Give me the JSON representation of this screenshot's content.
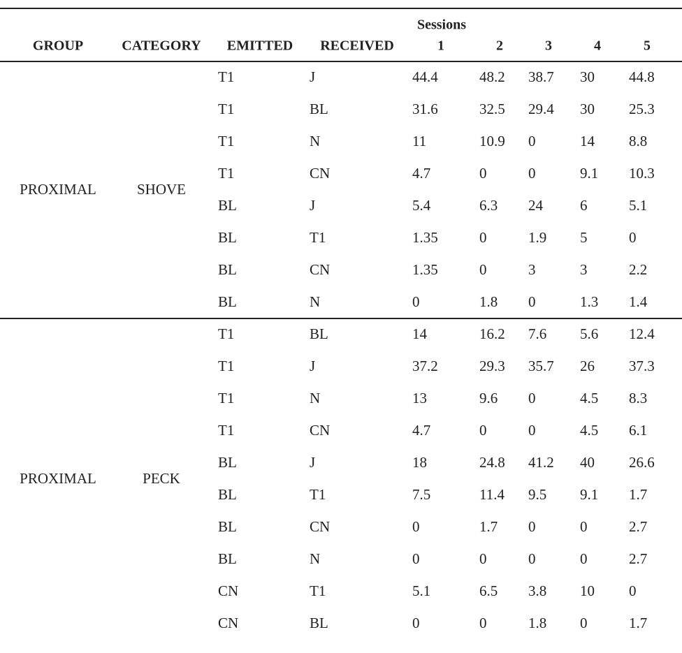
{
  "table": {
    "sessions_label": "Sessions",
    "headers": [
      "GROUP",
      "CATEGORY",
      "EMITTED",
      "RECEIVED"
    ],
    "sessions": [
      1,
      2,
      3,
      4,
      5
    ],
    "groups": [
      {
        "group": "PROXIMAL",
        "category": "SHOVE",
        "rows": [
          [
            "T1",
            "J",
            44.4,
            48.2,
            38.7,
            30,
            44.8
          ],
          [
            "T1",
            "BL",
            31.6,
            32.5,
            29.4,
            30,
            25.3
          ],
          [
            "T1",
            "N",
            11,
            10.9,
            0,
            14,
            8.8
          ],
          [
            "T1",
            "CN",
            4.7,
            0,
            0,
            9.1,
            10.3
          ],
          [
            "BL",
            "J",
            5.4,
            6.3,
            24,
            6,
            5.1
          ],
          [
            "BL",
            "T1",
            1.35,
            0,
            1.9,
            5,
            0
          ],
          [
            "BL",
            "CN",
            1.35,
            0,
            3,
            3,
            2.2
          ],
          [
            "BL",
            "N",
            0,
            1.8,
            0,
            1.3,
            1.4
          ]
        ]
      },
      {
        "group": "PROXIMAL",
        "category": "PECK",
        "rows": [
          [
            "T1",
            "BL",
            14,
            16.2,
            7.6,
            5.6,
            12.4
          ],
          [
            "T1",
            "J",
            37.2,
            29.3,
            35.7,
            26,
            37.3
          ],
          [
            "T1",
            "N",
            13,
            9.6,
            0,
            4.5,
            8.3
          ],
          [
            "T1",
            "CN",
            4.7,
            0,
            0,
            4.5,
            6.1
          ],
          [
            "BL",
            "J",
            18,
            24.8,
            41.2,
            40,
            26.6
          ],
          [
            "BL",
            "T1",
            7.5,
            11.4,
            9.5,
            9.1,
            1.7
          ],
          [
            "BL",
            "CN",
            0,
            1.7,
            0,
            0,
            2.7
          ],
          [
            "BL",
            "N",
            0,
            0,
            0,
            0,
            2.7
          ],
          [
            "CN",
            "T1",
            5.1,
            6.5,
            3.8,
            10,
            0
          ],
          [
            "CN",
            "BL",
            0,
            0,
            1.8,
            0,
            1.7
          ]
        ]
      }
    ]
  }
}
